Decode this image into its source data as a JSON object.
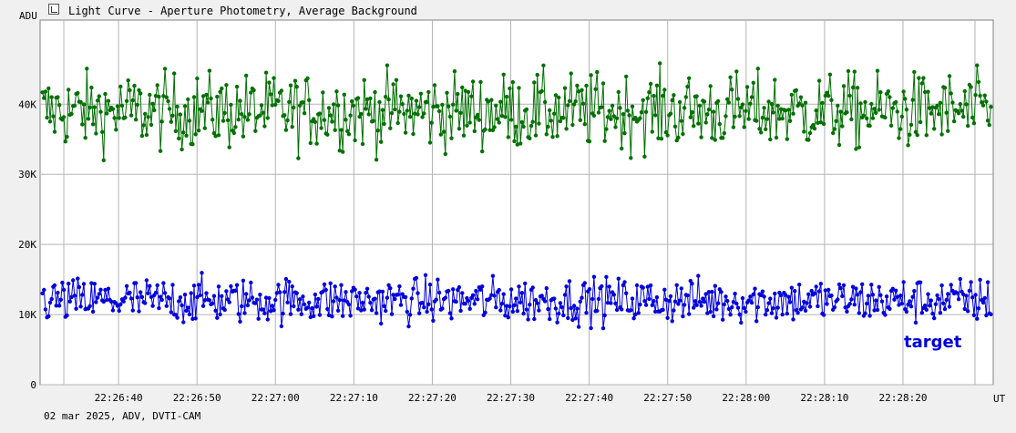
{
  "window": {
    "title": "Light Curve - Aperture Photometry, Average Background",
    "title_icon": "chart-window-icon"
  },
  "footer": {
    "text": "02 mar 2025, ADV, DVTI-CAM"
  },
  "chart_data": {
    "type": "line",
    "y_unit_label": "ADU",
    "x_unit_label": "UT",
    "ylim": [
      0,
      52000
    ],
    "y_ticks": [
      {
        "value": 0,
        "label": "0"
      },
      {
        "value": 10000,
        "label": "10K"
      },
      {
        "value": 20000,
        "label": "20K"
      },
      {
        "value": 30000,
        "label": "30K"
      },
      {
        "value": 40000,
        "label": "40K"
      }
    ],
    "x_range": [
      "22:26:30",
      "22:28:31.5"
    ],
    "x_ticks": [
      "22:26:40",
      "22:26:50",
      "22:27:00",
      "22:27:10",
      "22:27:20",
      "22:27:30",
      "22:27:40",
      "22:27:50",
      "22:28:00",
      "22:28:10",
      "22:28:20"
    ],
    "grid": true,
    "series": [
      {
        "name": "",
        "color": "#007000",
        "points_count": 620,
        "mean": 39000,
        "range": [
          30500,
          49000
        ]
      },
      {
        "name": "target",
        "color": "#0000dd",
        "points_count": 620,
        "mean": 12000,
        "range": [
          6500,
          17500
        ]
      }
    ]
  }
}
